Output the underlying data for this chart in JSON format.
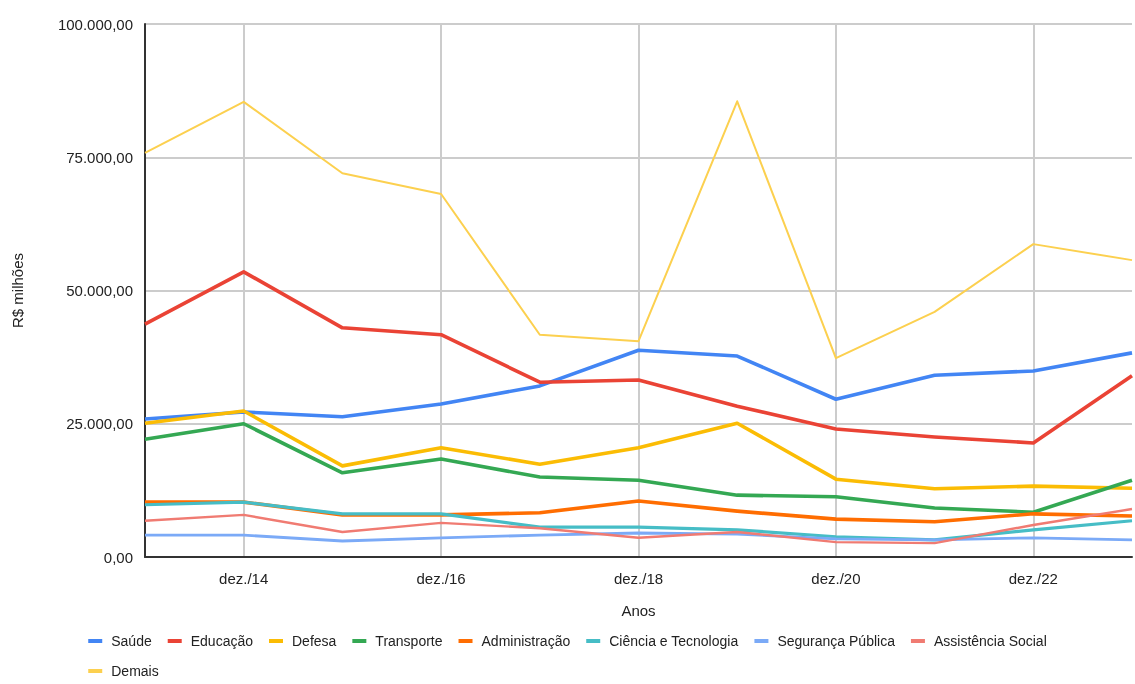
{
  "chart_data": {
    "type": "line",
    "xlabel": "Anos",
    "ylabel": "R$ milhões",
    "categories": [
      null,
      "dez./14",
      null,
      "dez./16",
      null,
      "dez./18",
      null,
      "dez./20",
      null,
      "dez./22",
      null
    ],
    "ylim": [
      0,
      100000
    ],
    "yticks": [
      {
        "value": 0,
        "label": "0,00"
      },
      {
        "value": 25000,
        "label": "25.000,00"
      },
      {
        "value": 50000,
        "label": "50.000,00"
      },
      {
        "value": 75000,
        "label": "75.000,00"
      },
      {
        "value": 100000,
        "label": "100.000,00"
      }
    ],
    "grid": true,
    "legend": "bottom",
    "marker": "none",
    "line_style": "solid",
    "series": [
      {
        "name": "Saúde",
        "color": "#4285f4",
        "values": [
          25900,
          27200,
          26300,
          28700,
          32100,
          38800,
          37700,
          29600,
          34100,
          34900,
          38300
        ]
      },
      {
        "name": "Educação",
        "color": "#ea4335",
        "values": [
          43700,
          53500,
          43000,
          41700,
          32800,
          33200,
          28300,
          24000,
          22500,
          21400,
          34000
        ]
      },
      {
        "name": "Defesa",
        "color": "#fbbc04",
        "values": [
          25100,
          27400,
          17100,
          20500,
          17400,
          20500,
          25100,
          14600,
          12800,
          13300,
          12900
        ]
      },
      {
        "name": "Transporte",
        "color": "#34a853",
        "values": [
          22100,
          25000,
          15800,
          18400,
          15000,
          14400,
          11600,
          11300,
          9200,
          8400,
          14400
        ]
      },
      {
        "name": "Administração",
        "color": "#ff6d01",
        "values": [
          10300,
          10300,
          7900,
          7900,
          8300,
          10500,
          8600,
          7100,
          6600,
          8100,
          7700
        ]
      },
      {
        "name": "Ciência e Tecnologia",
        "color": "#46bdc6",
        "values": [
          9800,
          10300,
          8100,
          8100,
          5600,
          5600,
          5100,
          3800,
          3200,
          5100,
          6800
        ]
      },
      {
        "name": "Segurança Pública",
        "color": "#7baaf7",
        "values": [
          4100,
          4100,
          3000,
          3600,
          4100,
          4500,
          4300,
          3400,
          3200,
          3600,
          3200
        ]
      },
      {
        "name": "Assistência Social",
        "color": "#f07b72",
        "values": [
          6800,
          7900,
          4700,
          6400,
          5400,
          3600,
          4700,
          2800,
          2600,
          6000,
          9000
        ]
      },
      {
        "name": "Demais",
        "color": "#fcd04f",
        "values": [
          75800,
          85400,
          72000,
          68100,
          41700,
          40500,
          85500,
          37300,
          46000,
          58700,
          55700
        ]
      }
    ]
  }
}
